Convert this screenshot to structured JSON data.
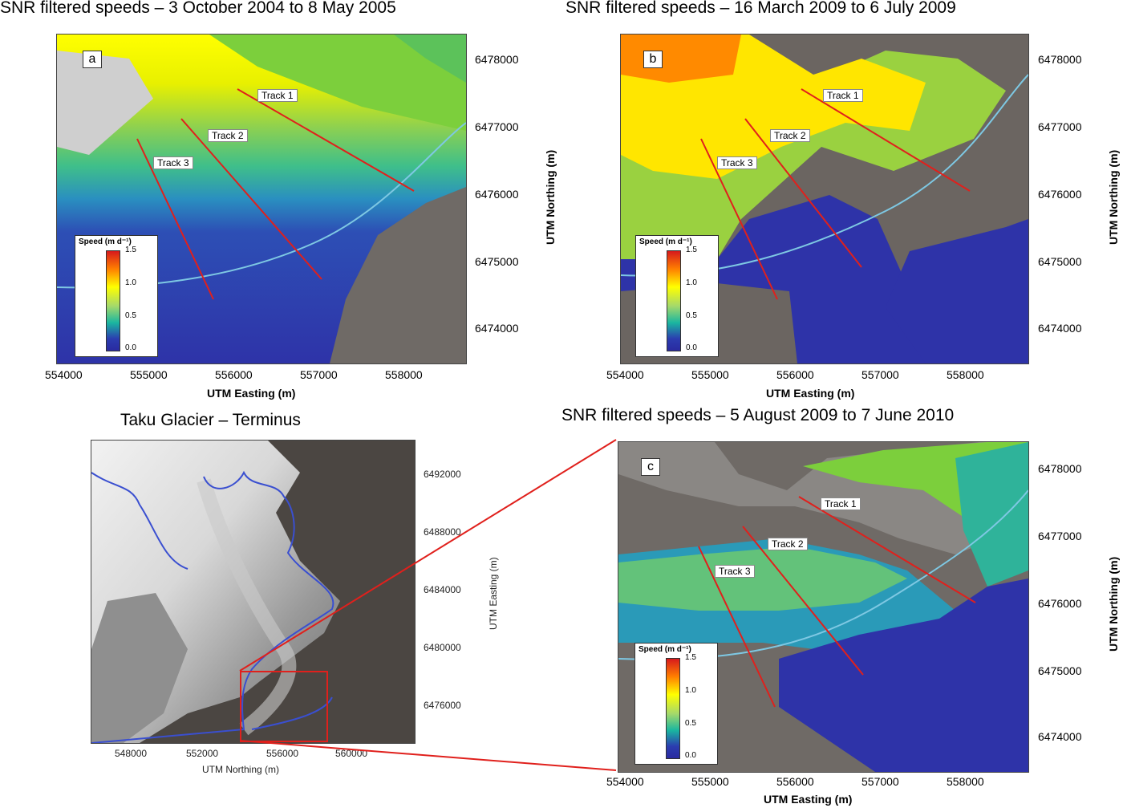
{
  "panels": {
    "a": {
      "title": "SNR filtered speeds – 3 October 2004 to 8 May 2005",
      "letter": "a",
      "x_ticks": [
        "554000",
        "555000",
        "556000",
        "557000",
        "558000"
      ],
      "y_ticks": [
        "6478000",
        "6477000",
        "6476000",
        "6475000",
        "6474000"
      ],
      "xlabel": "UTM Easting (m)",
      "ylabel": "UTM Northing (m)",
      "tracks": [
        "Track 1",
        "Track 2",
        "Track 3"
      ],
      "legend_title": "Speed (m d⁻¹)",
      "legend_values": [
        "1.5",
        "1.0",
        "0.5",
        "0.0"
      ]
    },
    "b": {
      "title": "SNR filtered speeds – 16 March 2009 to 6 July 2009",
      "letter": "b",
      "x_ticks": [
        "554000",
        "555000",
        "556000",
        "557000",
        "558000"
      ],
      "y_ticks": [
        "6478000",
        "6477000",
        "6476000",
        "6475000",
        "6474000"
      ],
      "xlabel": "UTM Easting (m)",
      "ylabel": "UTM Northing (m)",
      "tracks": [
        "Track 1",
        "Track 2",
        "Track 3"
      ],
      "legend_title": "Speed (m d⁻¹)",
      "legend_values": [
        "1.5",
        "1.0",
        "0.5",
        "0.0"
      ]
    },
    "c": {
      "title": "SNR filtered speeds – 5 August 2009 to 7 June 2010",
      "letter": "c",
      "x_ticks": [
        "554000",
        "555000",
        "556000",
        "557000",
        "558000"
      ],
      "y_ticks": [
        "6478000",
        "6477000",
        "6476000",
        "6475000",
        "6474000"
      ],
      "xlabel": "UTM Easting (m)",
      "ylabel": "UTM Northing (m)",
      "tracks": [
        "Track 1",
        "Track 2",
        "Track 3"
      ],
      "legend_title": "Speed (m d⁻¹)",
      "legend_values": [
        "1.5",
        "1.0",
        "0.5",
        "0.0"
      ]
    },
    "overview": {
      "title": "Taku Glacier – Terminus",
      "x_ticks": [
        "548000",
        "552000",
        "556000",
        "560000"
      ],
      "y_ticks": [
        "6492000",
        "6488000",
        "6484000",
        "6480000",
        "6476000"
      ],
      "xlabel": "UTM Northing (m)",
      "ylabel": "UTM Easting (m)"
    }
  },
  "colors": {
    "track_line": "#e0201c",
    "shoreline": "#7ec8e3",
    "outline": "#3a4fd0",
    "zoom_box": "#e0201c"
  }
}
